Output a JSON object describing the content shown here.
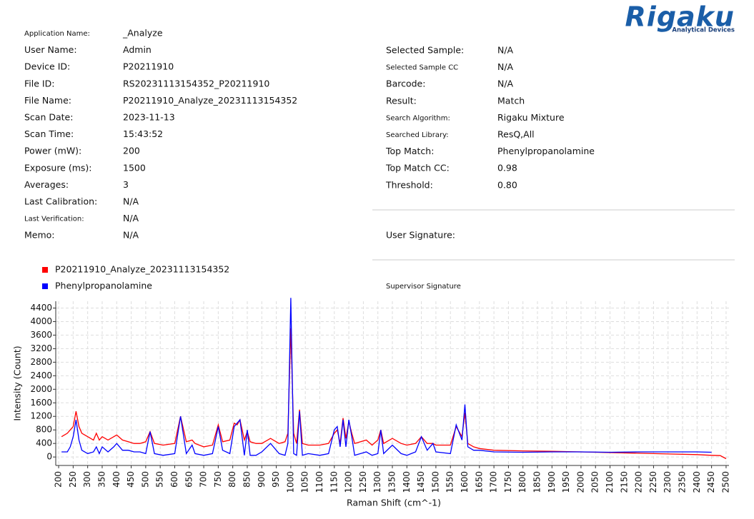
{
  "header": {
    "logo": "Rigaku",
    "logo_sub": "Analytical Devices"
  },
  "left_fields": [
    {
      "label": "Application Name:",
      "value": "_Analyze"
    },
    {
      "label": "User Name:",
      "value": "Admin"
    },
    {
      "label": "Device ID:",
      "value": "P20211910"
    },
    {
      "label": "File ID:",
      "value": "RS20231113154352_P20211910"
    },
    {
      "label": "File Name:",
      "value": "P20211910_Analyze_20231113154352"
    },
    {
      "label": "Scan Date:",
      "value": "2023-11-13"
    },
    {
      "label": "Scan Time:",
      "value": "15:43:52"
    },
    {
      "label": "Power (mW):",
      "value": "200"
    },
    {
      "label": "Exposure (ms):",
      "value": "1500"
    },
    {
      "label": "Averages:",
      "value": "3"
    },
    {
      "label": "Last Calibration:",
      "value": "N/A"
    },
    {
      "label": "Last Verification:",
      "value": "N/A"
    },
    {
      "label": "Memo:",
      "value": "N/A"
    }
  ],
  "right_fields": [
    {
      "label": "Selected Sample:",
      "value": "N/A"
    },
    {
      "label": "Selected Sample CC",
      "value": "N/A"
    },
    {
      "label": "Barcode:",
      "value": "N/A"
    },
    {
      "label": "Result:",
      "value": "Match"
    },
    {
      "label": "Search Algorithm:",
      "value": "Rigaku Mixture"
    },
    {
      "label": "Searched Library:",
      "value": "ResQ,All"
    },
    {
      "label": "Top Match:",
      "value": "Phenylpropanolamine"
    },
    {
      "label": "Top Match CC:",
      "value": "0.98"
    },
    {
      "label": "Threshold:",
      "value": "0.80"
    }
  ],
  "signatures": {
    "user": "User Signature:",
    "supervisor": "Supervisor Signature"
  },
  "chart_data": {
    "type": "line",
    "x_label": "Raman Shift (cm^-1)",
    "y_label": "Intensity (Count)",
    "x": [
      210,
      230,
      240,
      250,
      260,
      270,
      280,
      300,
      320,
      330,
      340,
      350,
      370,
      390,
      400,
      420,
      440,
      460,
      480,
      500,
      515,
      530,
      560,
      600,
      620,
      640,
      660,
      670,
      700,
      730,
      750,
      765,
      790,
      805,
      815,
      825,
      840,
      850,
      860,
      880,
      900,
      930,
      960,
      980,
      990,
      1000,
      1010,
      1020,
      1030,
      1040,
      1060,
      1100,
      1130,
      1150,
      1160,
      1170,
      1180,
      1190,
      1200,
      1210,
      1220,
      1260,
      1280,
      1300,
      1310,
      1320,
      1350,
      1380,
      1400,
      1430,
      1450,
      1470,
      1490,
      1500,
      1550,
      1570,
      1590,
      1600,
      1610,
      1630,
      1650,
      1700,
      1800,
      1900,
      2000,
      2100,
      2200,
      2300,
      2400,
      2450,
      2480,
      2500
    ],
    "series": [
      {
        "name": "P20211910_Analyze_20231113154352",
        "color": "#ff0000",
        "values": [
          600,
          700,
          800,
          900,
          1350,
          900,
          700,
          600,
          500,
          700,
          500,
          600,
          500,
          600,
          650,
          500,
          450,
          400,
          400,
          450,
          750,
          400,
          350,
          400,
          1200,
          450,
          500,
          400,
          300,
          350,
          950,
          450,
          500,
          1000,
          950,
          1100,
          500,
          750,
          450,
          400,
          400,
          550,
          400,
          450,
          700,
          3800,
          700,
          400,
          1400,
          400,
          350,
          350,
          400,
          700,
          800,
          400,
          1150,
          550,
          1050,
          700,
          400,
          500,
          350,
          500,
          800,
          400,
          550,
          400,
          350,
          400,
          600,
          400,
          400,
          350,
          350,
          900,
          600,
          1300,
          400,
          300,
          250,
          200,
          180,
          170,
          150,
          130,
          110,
          90,
          70,
          50,
          40,
          -50
        ]
      },
      {
        "name": "Phenylpropanolamine",
        "color": "#0000ff",
        "values": [
          150,
          150,
          300,
          600,
          1100,
          500,
          200,
          100,
          150,
          300,
          100,
          300,
          150,
          300,
          400,
          200,
          200,
          150,
          150,
          100,
          750,
          100,
          50,
          100,
          1200,
          100,
          350,
          100,
          50,
          100,
          900,
          200,
          100,
          900,
          1000,
          1100,
          50,
          800,
          50,
          50,
          150,
          400,
          100,
          50,
          400,
          4700,
          100,
          50,
          1350,
          50,
          100,
          50,
          100,
          800,
          900,
          300,
          1100,
          300,
          1100,
          600,
          50,
          150,
          50,
          100,
          800,
          100,
          350,
          100,
          50,
          150,
          600,
          200,
          400,
          150,
          100,
          950,
          500,
          1550,
          300,
          200,
          200,
          150,
          140,
          150,
          150,
          140,
          150,
          150,
          150,
          140,
          null,
          null
        ]
      }
    ],
    "xlim": [
      190,
      2510
    ],
    "ylim": [
      -250,
      4600
    ],
    "xticks": [
      200,
      250,
      300,
      350,
      400,
      450,
      500,
      550,
      600,
      650,
      700,
      750,
      800,
      850,
      900,
      950,
      1000,
      1050,
      1100,
      1150,
      1200,
      1250,
      1300,
      1350,
      1400,
      1450,
      1500,
      1550,
      1600,
      1650,
      1700,
      1750,
      1800,
      1850,
      1900,
      1950,
      2000,
      2050,
      2100,
      2150,
      2200,
      2250,
      2300,
      2350,
      2400,
      2450,
      2500
    ],
    "yticks": [
      0,
      400,
      800,
      1200,
      1600,
      2000,
      2400,
      2800,
      3200,
      3600,
      4000,
      4400
    ],
    "grid": true
  }
}
